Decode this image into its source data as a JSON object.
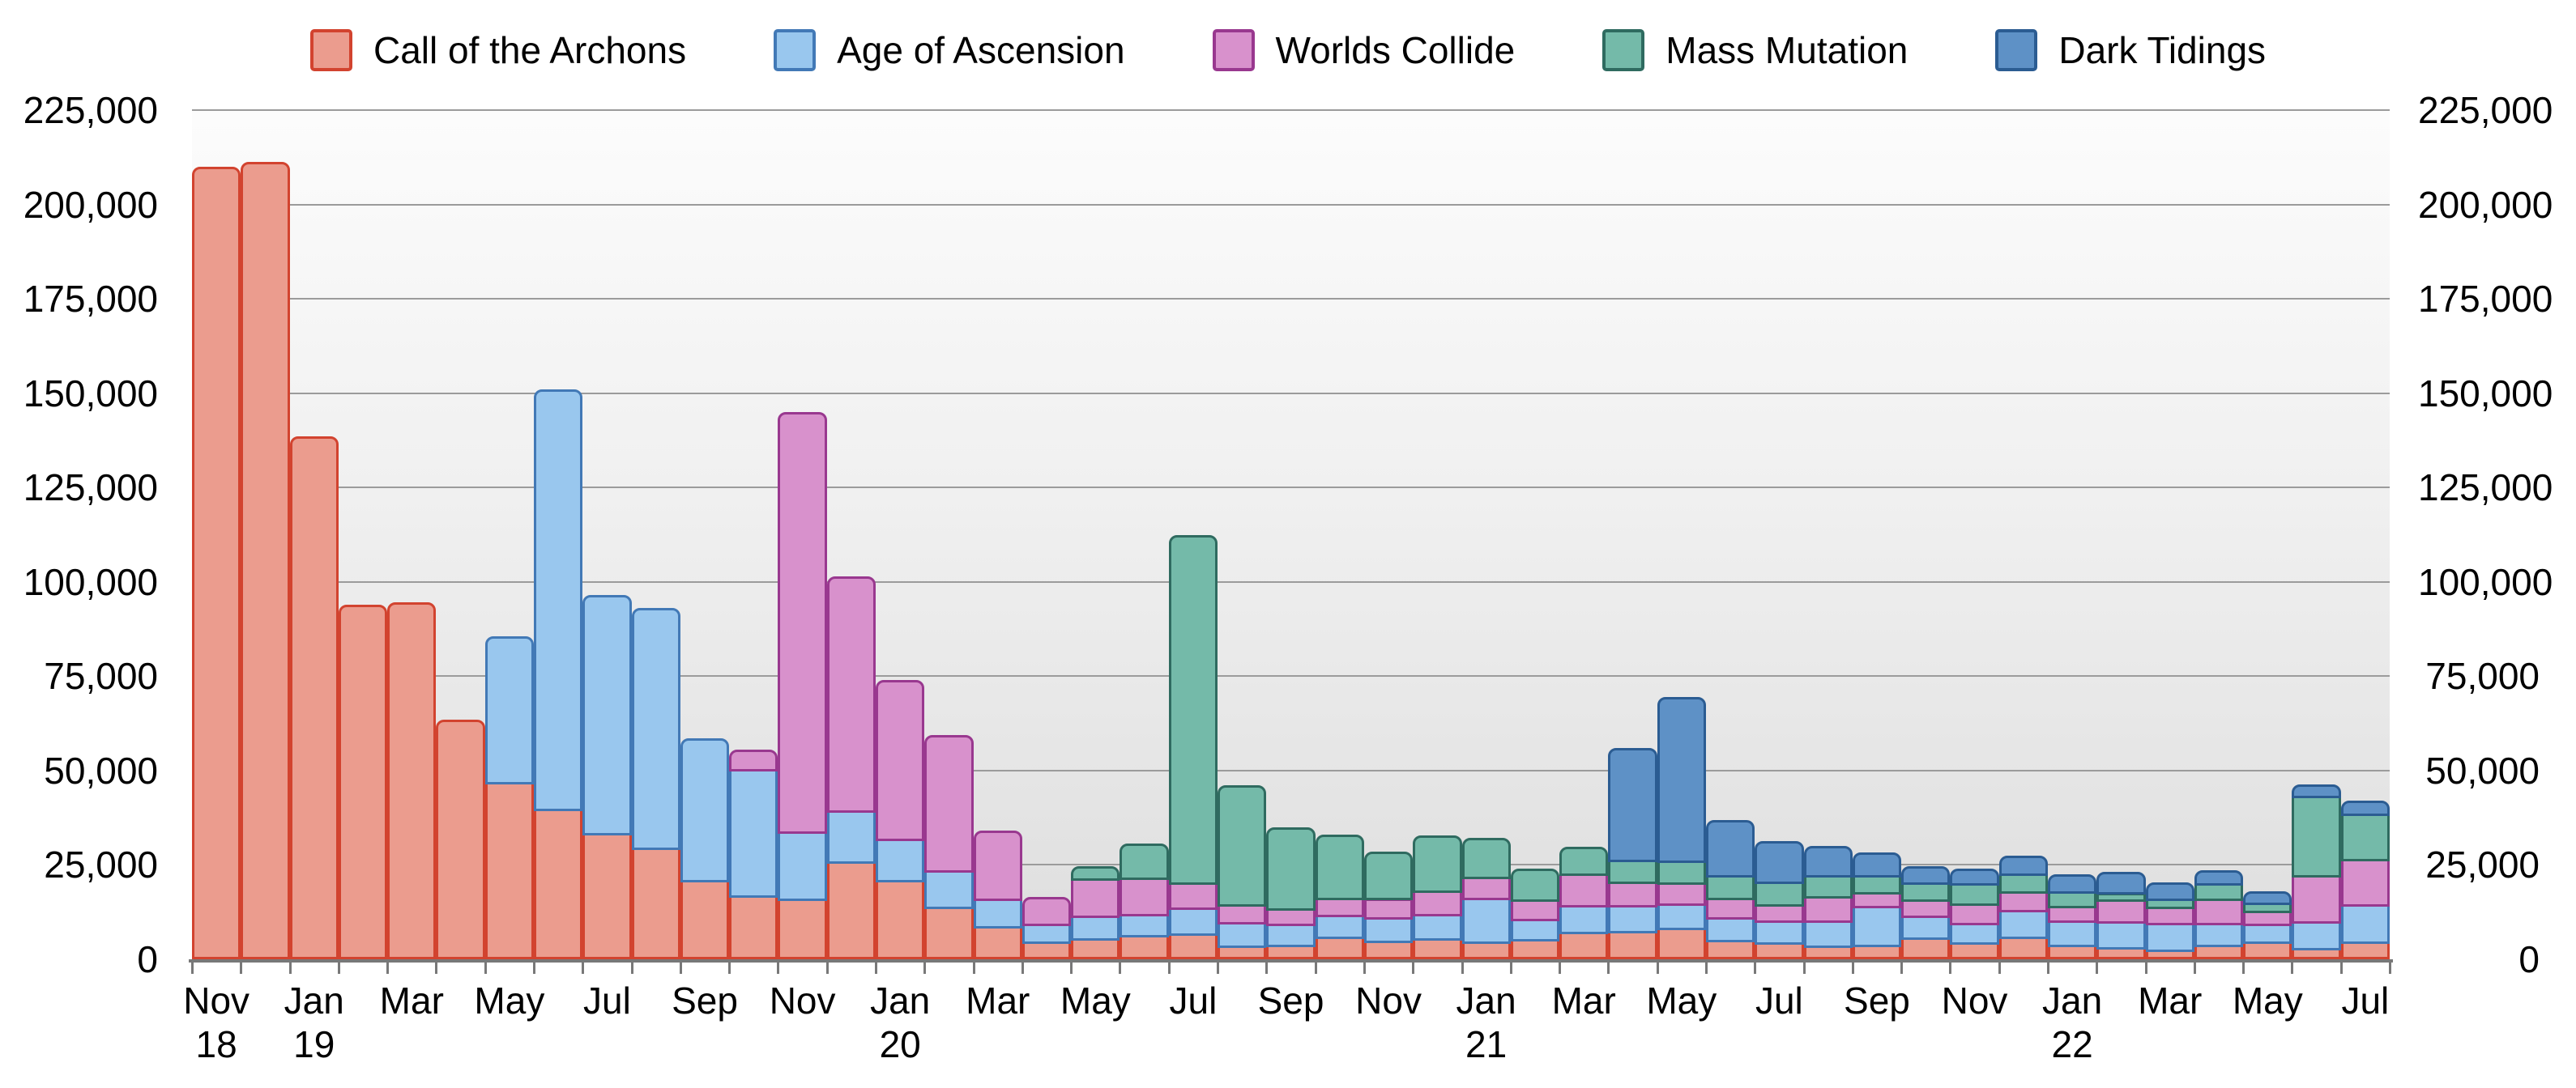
{
  "legend": {
    "position": "top",
    "items": [
      "Call of the Archons",
      "Age of Ascension",
      "Worlds Collide",
      "Mass Mutation",
      "Dark Tidings"
    ]
  },
  "y_axis": {
    "min": 0,
    "max": 225000,
    "step": 25000,
    "sides": "both",
    "tick_labels": [
      "0",
      "25,000",
      "50,000",
      "75,000",
      "100,000",
      "125,000",
      "150,000",
      "175,000",
      "200,000",
      "225,000"
    ]
  },
  "x_axis": {
    "tick_labels": [
      {
        "index": 0,
        "month": "Nov",
        "year": "18"
      },
      {
        "index": 2,
        "month": "Jan",
        "year": "19"
      },
      {
        "index": 4,
        "month": "Mar",
        "year": ""
      },
      {
        "index": 6,
        "month": "May",
        "year": ""
      },
      {
        "index": 8,
        "month": "Jul",
        "year": ""
      },
      {
        "index": 10,
        "month": "Sep",
        "year": ""
      },
      {
        "index": 12,
        "month": "Nov",
        "year": ""
      },
      {
        "index": 14,
        "month": "Jan",
        "year": "20"
      },
      {
        "index": 16,
        "month": "Mar",
        "year": ""
      },
      {
        "index": 18,
        "month": "May",
        "year": ""
      },
      {
        "index": 20,
        "month": "Jul",
        "year": ""
      },
      {
        "index": 22,
        "month": "Sep",
        "year": ""
      },
      {
        "index": 24,
        "month": "Nov",
        "year": ""
      },
      {
        "index": 26,
        "month": "Jan",
        "year": "21"
      },
      {
        "index": 28,
        "month": "Mar",
        "year": ""
      },
      {
        "index": 30,
        "month": "May",
        "year": ""
      },
      {
        "index": 32,
        "month": "Jul",
        "year": ""
      },
      {
        "index": 34,
        "month": "Sep",
        "year": ""
      },
      {
        "index": 36,
        "month": "Nov",
        "year": ""
      },
      {
        "index": 38,
        "month": "Jan",
        "year": "22"
      },
      {
        "index": 40,
        "month": "Mar",
        "year": ""
      },
      {
        "index": 42,
        "month": "May",
        "year": ""
      },
      {
        "index": 44,
        "month": "Jul",
        "year": ""
      }
    ]
  },
  "chart_data": {
    "type": "bar",
    "stacked": true,
    "grid": true,
    "legend_position": "top",
    "ylim": [
      0,
      225000
    ],
    "categories": [
      "Nov 2018",
      "Dec 2018",
      "Jan 2019",
      "Feb 2019",
      "Mar 2019",
      "Apr 2019",
      "May 2019",
      "Jun 2019",
      "Jul 2019",
      "Aug 2019",
      "Sep 2019",
      "Oct 2019",
      "Nov 2019",
      "Dec 2019",
      "Jan 2020",
      "Feb 2020",
      "Mar 2020",
      "Apr 2020",
      "May 2020",
      "Jun 2020",
      "Jul 2020",
      "Aug 2020",
      "Sep 2020",
      "Oct 2020",
      "Nov 2020",
      "Dec 2020",
      "Jan 2021",
      "Feb 2021",
      "Mar 2021",
      "Apr 2021",
      "May 2021",
      "Jun 2021",
      "Jul 2021",
      "Aug 2021",
      "Sep 2021",
      "Oct 2021",
      "Nov 2021",
      "Dec 2021",
      "Jan 2022",
      "Feb 2022",
      "Mar 2022",
      "Apr 2022",
      "May 2022",
      "Jun 2022",
      "Jul 2022"
    ],
    "series": [
      {
        "name": "Call of the Archons",
        "fill": "#EB9C8E",
        "border": "#D2432F",
        "values": [
          210000,
          211200,
          138500,
          94000,
          94500,
          63500,
          47000,
          40000,
          33500,
          29500,
          21000,
          17000,
          16000,
          26000,
          21000,
          14000,
          8700,
          4700,
          5600,
          6400,
          6900,
          3700,
          3800,
          6000,
          5000,
          5500,
          4700,
          5300,
          7400,
          7600,
          8300,
          5200,
          4600,
          3600,
          3900,
          5700,
          4600,
          6000,
          3900,
          3200,
          2600,
          3900,
          4700,
          3000,
          4700
        ]
      },
      {
        "name": "Age of Ascension",
        "fill": "#99C7EE",
        "border": "#4279B6",
        "values": [
          0,
          0,
          0,
          0,
          0,
          0,
          38500,
          111000,
          63000,
          63500,
          37500,
          33500,
          18000,
          13500,
          11000,
          9500,
          7400,
          4700,
          6000,
          5700,
          6800,
          6200,
          5700,
          5700,
          6200,
          6500,
          11500,
          5500,
          7000,
          6800,
          6400,
          6000,
          5600,
          6700,
          10300,
          5900,
          5100,
          7000,
          6400,
          6900,
          7100,
          5800,
          4700,
          7100,
          9900
        ]
      },
      {
        "name": "Worlds Collide",
        "fill": "#D891CC",
        "border": "#99388F",
        "values": [
          0,
          0,
          0,
          0,
          0,
          0,
          0,
          0,
          0,
          0,
          0,
          5000,
          111000,
          62000,
          42000,
          36000,
          18100,
          7100,
          9900,
          9600,
          6600,
          4700,
          4100,
          4500,
          5000,
          6300,
          5600,
          5000,
          8400,
          6100,
          5700,
          5200,
          4400,
          6400,
          3600,
          4300,
          5000,
          5100,
          3900,
          5700,
          4300,
          6400,
          3500,
          12200,
          11900
        ]
      },
      {
        "name": "Mass Mutation",
        "fill": "#74BAA9",
        "border": "#2F6B60",
        "values": [
          0,
          0,
          0,
          0,
          0,
          0,
          0,
          0,
          0,
          0,
          0,
          0,
          0,
          0,
          0,
          0,
          0,
          0,
          3100,
          9000,
          92000,
          31500,
          21300,
          16900,
          12400,
          14600,
          10400,
          8200,
          7100,
          5900,
          5700,
          6000,
          6000,
          5700,
          4600,
          4500,
          5400,
          4600,
          3900,
          1900,
          2100,
          4000,
          2200,
          21000,
          12200
        ]
      },
      {
        "name": "Dark Tidings",
        "fill": "#5E91C6",
        "border": "#2B5C92",
        "values": [
          0,
          0,
          0,
          0,
          0,
          0,
          0,
          0,
          0,
          0,
          0,
          0,
          0,
          0,
          0,
          0,
          0,
          0,
          0,
          0,
          0,
          0,
          0,
          0,
          0,
          0,
          0,
          0,
          0,
          29600,
          43300,
          14400,
          10700,
          7700,
          6000,
          4300,
          4000,
          4700,
          4400,
          5500,
          4300,
          3500,
          2900,
          3000,
          3300
        ]
      }
    ]
  }
}
